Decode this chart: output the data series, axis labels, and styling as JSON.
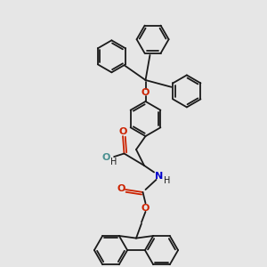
{
  "background_color": "#e6e6e6",
  "bond_color": "#1a1a1a",
  "oxygen_color": "#cc2200",
  "nitrogen_color": "#0000cc",
  "teal_color": "#4a9090",
  "bond_lw": 1.3,
  "figsize": [
    3.0,
    3.0
  ],
  "dpi": 100,
  "xlim": [
    0,
    10
  ],
  "ylim": [
    0,
    10
  ]
}
